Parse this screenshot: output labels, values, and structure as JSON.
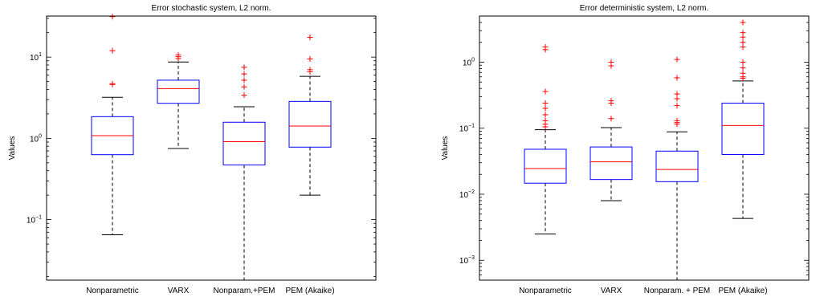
{
  "chart_data": [
    {
      "type": "box",
      "title": "Error stochastic system, L2 norm.",
      "ylabel": "Values",
      "xlabel": "",
      "yscale": "log",
      "ylim": [
        0.018,
        32
      ],
      "yticks": [
        {
          "value": 0.1,
          "base": "10",
          "exp": "−1"
        },
        {
          "value": 1,
          "base": "10",
          "exp": "0"
        },
        {
          "value": 10,
          "base": "10",
          "exp": "1"
        }
      ],
      "categories": [
        "Nonparametric",
        "VARX",
        "Nonparam.+PEM",
        "PEM (Akaike)"
      ],
      "boxes": [
        {
          "whisker_low": 0.065,
          "q1": 0.63,
          "median": 1.08,
          "q3": 1.85,
          "whisker_high": 3.2,
          "outliers": [
            4.6,
            4.7,
            12.0,
            31.5
          ]
        },
        {
          "whisker_low": 0.75,
          "q1": 2.7,
          "median": 4.1,
          "q3": 5.2,
          "whisker_high": 8.7,
          "outliers": [
            9.6,
            10.1,
            10.6
          ]
        },
        {
          "whisker_low": 0.018,
          "q1": 0.47,
          "median": 0.91,
          "q3": 1.58,
          "whisker_high": 2.45,
          "outliers": [
            3.4,
            4.3,
            5.2,
            6.2,
            7.5
          ]
        },
        {
          "whisker_low": 0.2,
          "q1": 0.78,
          "median": 1.42,
          "q3": 2.85,
          "whisker_high": 5.8,
          "outliers": [
            6.6,
            7.0,
            9.5,
            17.5
          ]
        }
      ],
      "colors": {
        "box": "#0000ff",
        "median": "#ff0000",
        "whisker": "#000000",
        "outlier": "#ff0000"
      },
      "grid": false
    },
    {
      "type": "box",
      "title": "Error deterministic system, L2 norm.",
      "ylabel": "Values",
      "xlabel": "",
      "yscale": "log",
      "ylim": [
        0.0005,
        5.0
      ],
      "yticks": [
        {
          "value": 0.001,
          "base": "10",
          "exp": "−3"
        },
        {
          "value": 0.01,
          "base": "10",
          "exp": "−2"
        },
        {
          "value": 0.1,
          "base": "10",
          "exp": "−1"
        },
        {
          "value": 1,
          "base": "10",
          "exp": "0"
        }
      ],
      "categories": [
        "Nonparametric",
        "VARX",
        "Nonparam. + PEM",
        "PEM (Akaike)"
      ],
      "boxes": [
        {
          "whisker_low": 0.0025,
          "q1": 0.0147,
          "median": 0.0245,
          "q3": 0.048,
          "whisker_high": 0.095,
          "outliers": [
            0.105,
            0.115,
            0.13,
            0.16,
            0.2,
            0.24,
            0.36,
            1.55,
            1.7
          ]
        },
        {
          "whisker_low": 0.008,
          "q1": 0.0167,
          "median": 0.031,
          "q3": 0.052,
          "whisker_high": 0.102,
          "outliers": [
            0.14,
            0.24,
            0.26,
            0.88,
            1.0
          ]
        },
        {
          "whisker_low": 0.0005,
          "q1": 0.0155,
          "median": 0.0237,
          "q3": 0.045,
          "whisker_high": 0.088,
          "outliers": [
            0.115,
            0.122,
            0.13,
            0.22,
            0.28,
            0.33,
            0.58,
            1.1
          ]
        },
        {
          "whisker_low": 0.0043,
          "q1": 0.04,
          "median": 0.11,
          "q3": 0.24,
          "whisker_high": 0.52,
          "outliers": [
            0.57,
            0.6,
            0.68,
            0.82,
            1.0,
            1.7,
            2.0,
            2.4,
            2.8,
            4.0
          ]
        }
      ],
      "colors": {
        "box": "#0000ff",
        "median": "#ff0000",
        "whisker": "#000000",
        "outlier": "#ff0000"
      },
      "grid": false
    }
  ]
}
